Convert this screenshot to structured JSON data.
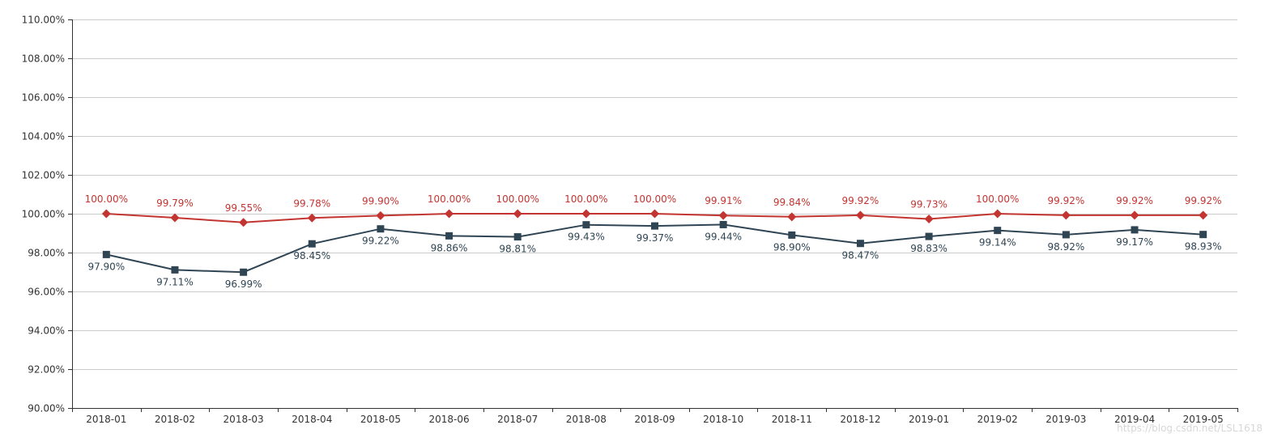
{
  "chart_data": {
    "type": "line",
    "categories": [
      "2018-01",
      "2018-02",
      "2018-03",
      "2018-04",
      "2018-05",
      "2018-06",
      "2018-07",
      "2018-08",
      "2018-09",
      "2018-10",
      "2018-11",
      "2018-12",
      "2019-01",
      "2019-02",
      "2019-03",
      "2019-04",
      "2019-05"
    ],
    "series": [
      {
        "color": "#c23531",
        "marker": "diamond",
        "label_position": "above",
        "values": [
          100.0,
          99.79,
          99.55,
          99.78,
          99.9,
          100.0,
          100.0,
          100.0,
          100.0,
          99.91,
          99.84,
          99.92,
          99.73,
          100.0,
          99.92,
          99.92,
          99.92
        ],
        "labels": [
          "100.00%",
          "99.79%",
          "99.55%",
          "99.78%",
          "99.90%",
          "100.00%",
          "100.00%",
          "100.00%",
          "100.00%",
          "99.91%",
          "99.84%",
          "99.92%",
          "99.73%",
          "100.00%",
          "99.92%",
          "99.92%",
          "99.92%"
        ]
      },
      {
        "color": "#2f4554",
        "marker": "square",
        "label_position": "below",
        "values": [
          97.9,
          97.11,
          96.99,
          98.45,
          99.22,
          98.86,
          98.81,
          99.43,
          99.37,
          99.44,
          98.9,
          98.47,
          98.83,
          99.14,
          98.92,
          99.17,
          98.93
        ],
        "labels": [
          "97.90%",
          "97.11%",
          "96.99%",
          "98.45%",
          "99.22%",
          "98.86%",
          "98.81%",
          "99.43%",
          "99.37%",
          "99.44%",
          "98.90%",
          "98.47%",
          "98.83%",
          "99.14%",
          "98.92%",
          "99.17%",
          "98.93%"
        ]
      }
    ],
    "ylim": [
      90,
      110
    ],
    "yticks": [
      90,
      92,
      94,
      96,
      98,
      100,
      102,
      104,
      106,
      108,
      110
    ],
    "ytick_labels": [
      "90.00%",
      "92.00%",
      "94.00%",
      "96.00%",
      "98.00%",
      "100.00%",
      "102.00%",
      "104.00%",
      "106.00%",
      "108.00%",
      "110.00%"
    ],
    "grid": "horizontal",
    "title": "",
    "xlabel": "",
    "ylabel": ""
  },
  "watermark": "https://blog.csdn.net/LSL1618"
}
